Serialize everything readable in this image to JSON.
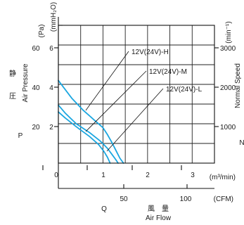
{
  "chart_data": {
    "type": "line",
    "colors": {
      "curve": "#1aa6e0",
      "grid": "#222222"
    },
    "x_m3min": {
      "ticks": [
        "0",
        "1",
        "2",
        "3"
      ],
      "unit_label": "(m³/min)",
      "range": [
        0,
        3.5
      ]
    },
    "x_cfm": {
      "ticks": [
        "50",
        "100"
      ],
      "unit_label": "(CFM)",
      "range": [
        0,
        123.6
      ]
    },
    "y_mmh2o": {
      "ticks": [
        "6",
        "4",
        "2"
      ],
      "unit_label": "(mmH₂O)",
      "range": [
        0,
        7
      ]
    },
    "y_pa": {
      "ticks": [
        "60",
        "40",
        "20"
      ],
      "unit_label": "(Pa)",
      "range": [
        0,
        68.6
      ]
    },
    "y_rpm": {
      "ticks": [
        "3000",
        "2000",
        "1000"
      ],
      "unit_label": "(min⁻¹)",
      "range": [
        0,
        3500
      ]
    },
    "labels": {
      "pressure_cn": "静",
      "pressure_cn2": "圧",
      "pressure_en": "Air Pressure",
      "pressure_sym": "P",
      "speed_en": "Normal Speed",
      "speed_sym": "N",
      "flow_sym": "Q",
      "flow_cn": "風　量",
      "flow_en": "Air Flow"
    },
    "series": [
      {
        "name": "12V(24V)-H",
        "x": [
          0,
          0.1,
          0.3,
          0.55,
          0.8,
          1.0,
          1.1,
          1.2,
          1.3,
          1.38,
          1.46
        ],
        "y": [
          4.2,
          3.9,
          3.3,
          2.7,
          2.2,
          1.8,
          1.45,
          1.05,
          0.6,
          0.25,
          0
        ]
      },
      {
        "name": "12V(24V)-M",
        "x": [
          0,
          0.15,
          0.4,
          0.7,
          0.95,
          1.1,
          1.2,
          1.28,
          1.34
        ],
        "y": [
          2.95,
          2.55,
          2.0,
          1.55,
          1.1,
          0.75,
          0.45,
          0.2,
          0
        ]
      },
      {
        "name": "12V(24V)-L",
        "x": [
          0,
          0.15,
          0.4,
          0.7,
          0.9,
          1.02,
          1.1,
          1.16
        ],
        "y": [
          2.6,
          2.3,
          1.85,
          1.35,
          0.95,
          0.6,
          0.3,
          0
        ]
      }
    ]
  }
}
